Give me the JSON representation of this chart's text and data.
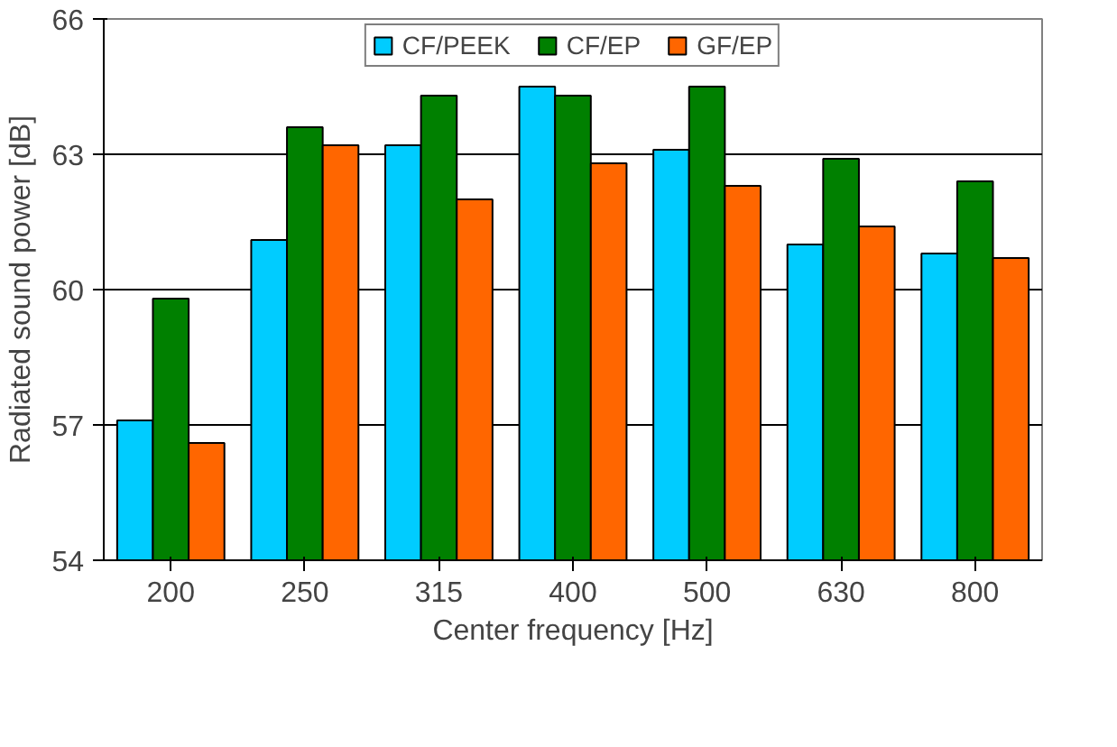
{
  "chart_data": {
    "type": "bar",
    "xlabel": "Center frequency [Hz]",
    "ylabel": "Radiated sound power [dB]",
    "categories": [
      "200",
      "250",
      "315",
      "400",
      "500",
      "630",
      "800"
    ],
    "series": [
      {
        "name": "CF/PEEK",
        "color": "#00ccff",
        "values": [
          57.1,
          61.1,
          63.2,
          64.5,
          63.1,
          61.0,
          60.8
        ]
      },
      {
        "name": "CF/EP",
        "color": "#008000",
        "values": [
          59.8,
          63.6,
          64.3,
          64.3,
          64.5,
          62.9,
          62.4
        ]
      },
      {
        "name": "GF/EP",
        "color": "#ff6600",
        "values": [
          56.6,
          63.2,
          62.0,
          62.8,
          62.3,
          61.4,
          60.7
        ]
      }
    ],
    "ylim": [
      54,
      66
    ],
    "yticks": [
      54,
      57,
      60,
      63,
      66
    ],
    "grid": "y",
    "legend": "top"
  }
}
